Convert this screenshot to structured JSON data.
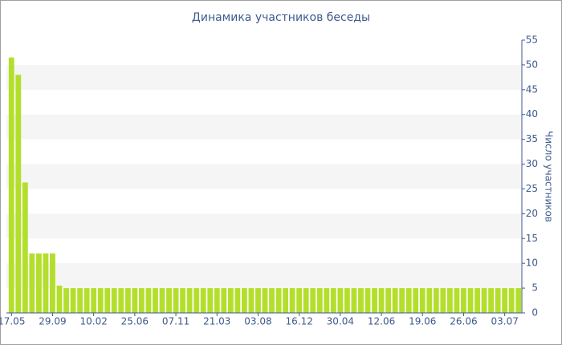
{
  "chart_data": {
    "type": "bar",
    "title": "Динамика участников беседы",
    "y_label": "Число участников",
    "categories": [
      "17.05",
      null,
      null,
      null,
      null,
      null,
      "29.09",
      null,
      null,
      null,
      null,
      null,
      "10.02",
      null,
      null,
      null,
      null,
      null,
      "25.06",
      null,
      null,
      null,
      null,
      null,
      "07.11",
      null,
      null,
      null,
      null,
      null,
      "21.03",
      null,
      null,
      null,
      null,
      null,
      "03.08",
      null,
      null,
      null,
      null,
      null,
      "16.12",
      null,
      null,
      null,
      null,
      null,
      "30.04",
      null,
      null,
      null,
      null,
      null,
      "12.06",
      null,
      null,
      null,
      null,
      null,
      "19.06",
      null,
      null,
      null,
      null,
      null,
      "26.06",
      null,
      null,
      null,
      null,
      null,
      "03.07",
      null,
      null
    ],
    "values": [
      51.5,
      48,
      26.3,
      12,
      12,
      12,
      12,
      5.5,
      5,
      5,
      5,
      5,
      5,
      5,
      5,
      5,
      5,
      5,
      5,
      5,
      5,
      5,
      5,
      5,
      5,
      5,
      5,
      5,
      5,
      5,
      5,
      5,
      5,
      5,
      5,
      5,
      5,
      5,
      5,
      5,
      5,
      5,
      5,
      5,
      5,
      5,
      5,
      5,
      5,
      5,
      5,
      5,
      5,
      5,
      5,
      5,
      5,
      5,
      5,
      5,
      5,
      5,
      5,
      5,
      5,
      5,
      5,
      5,
      5,
      5,
      5,
      5,
      5,
      5,
      5
    ],
    "color": "#b3df2c",
    "ylim": [
      0,
      55
    ],
    "yticks": [
      0,
      5,
      10,
      15,
      20,
      25,
      30,
      35,
      40,
      45,
      50,
      55
    ],
    "grid": "bands"
  }
}
